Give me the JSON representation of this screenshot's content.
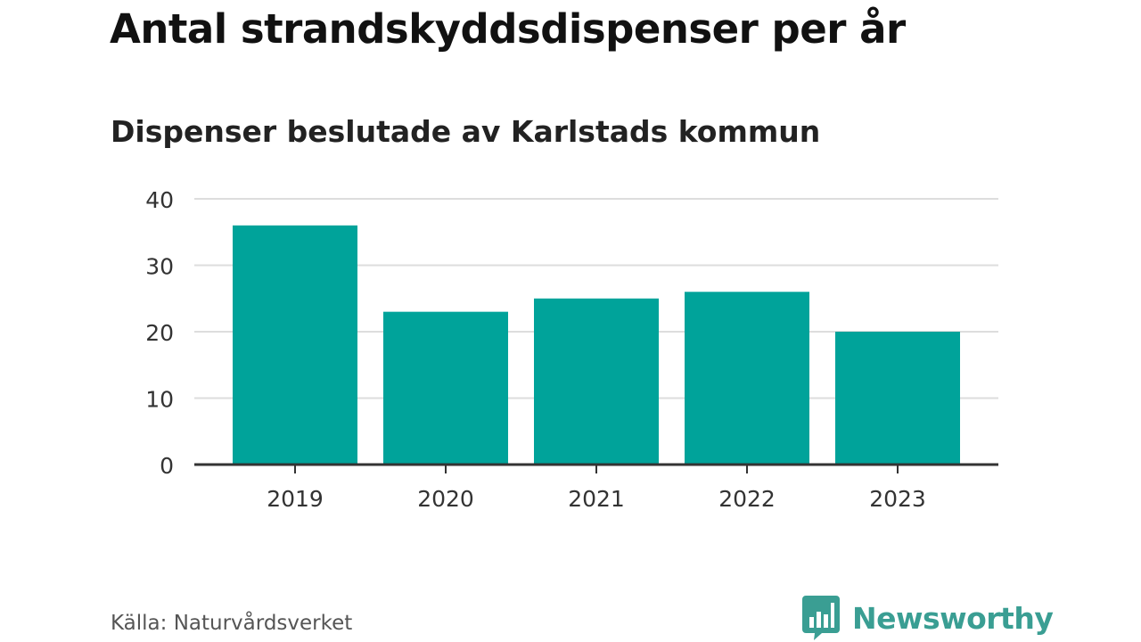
{
  "header": {
    "title": "Antal strandskyddsdispenser per år",
    "subtitle": "Dispenser beslutade av Karlstads kommun"
  },
  "footer": {
    "source": "Källa: Naturvårdsverket",
    "brand": "Newsworthy",
    "brand_icon": "bar-chart-speech-bubble-icon"
  },
  "colors": {
    "bar": "#00a39a",
    "grid": "#dddddd",
    "axis": "#333333",
    "brand": "#3a9e93"
  },
  "chart_data": {
    "type": "bar",
    "categories": [
      "2019",
      "2020",
      "2021",
      "2022",
      "2023"
    ],
    "values": [
      36,
      23,
      25,
      26,
      20
    ],
    "title": "Antal strandskyddsdispenser per år",
    "subtitle": "Dispenser beslutade av Karlstads kommun",
    "xlabel": "",
    "ylabel": "",
    "ylim": [
      0,
      40
    ],
    "yticks": [
      0,
      10,
      20,
      30,
      40
    ],
    "grid": true,
    "legend": "none"
  }
}
